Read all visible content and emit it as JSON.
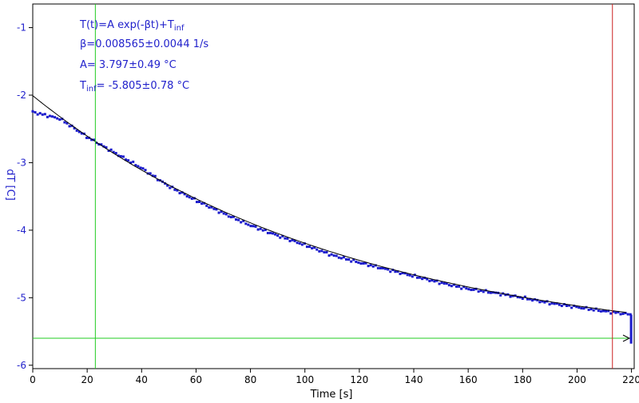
{
  "chart_data": {
    "type": "scatter",
    "title": "",
    "xlabel": "Time [s]",
    "ylabel": "dT [C]",
    "xlim": [
      0,
      221
    ],
    "ylim": [
      -6.05,
      -0.65
    ],
    "x_ticks": [
      0,
      20,
      40,
      60,
      80,
      100,
      120,
      140,
      160,
      180,
      200,
      220
    ],
    "y_ticks": [
      -1,
      -2,
      -3,
      -4,
      -5,
      -6
    ],
    "grid": false,
    "colors": {
      "data": "#1a1acc",
      "fit": "#000000",
      "cursor_x": "#22cc22",
      "cursor_y": "#22cc22",
      "limit_x": "#cc2222",
      "text": "#2222cc"
    },
    "fit": {
      "model": "exponential_decay",
      "A": 3.797,
      "beta": 0.008565,
      "T_inf": -5.805,
      "equation_prefix": "T(t)=A exp(-βt)+T",
      "equation_sub": "inf",
      "beta_text": "β=0.008565±0.0044 1/s",
      "A_text": "A= 3.797±0.49 °C",
      "Tinf_prefix": "T",
      "Tinf_sub": "inf",
      "Tinf_text": "= -5.805±0.78 °C"
    },
    "cursors": {
      "vertical_green_x": 23,
      "horizontal_green_y": -5.6,
      "vertical_red_x": 213
    },
    "series": [
      {
        "marker": "square",
        "x": [
          0,
          10,
          20,
          30,
          40,
          50,
          60,
          70,
          80,
          90,
          100,
          110,
          120,
          130,
          140,
          150,
          160,
          170,
          180,
          190,
          200,
          210,
          220
        ],
        "values": [
          -2.25,
          -2.35,
          -2.62,
          -2.85,
          -3.08,
          -3.35,
          -3.56,
          -3.75,
          -3.93,
          -4.08,
          -4.22,
          -4.37,
          -4.48,
          -4.58,
          -4.68,
          -4.78,
          -4.87,
          -4.93,
          -5.0,
          -5.08,
          -5.14,
          -5.2,
          -5.25
        ]
      }
    ]
  }
}
